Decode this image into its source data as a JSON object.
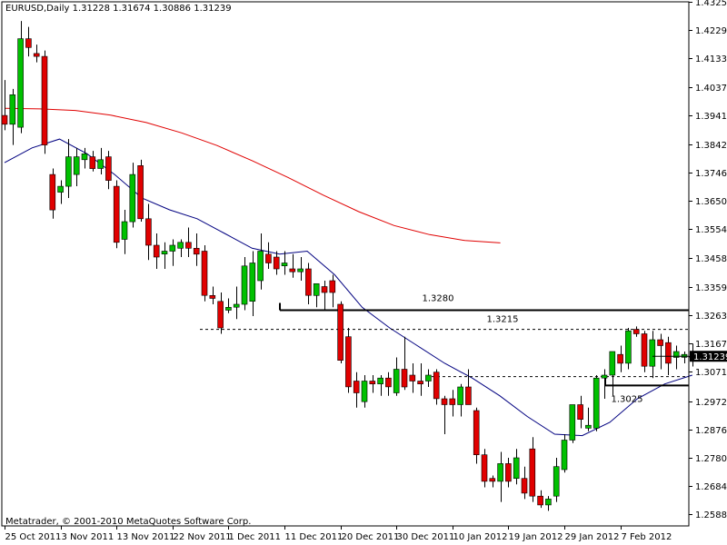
{
  "header": {
    "title": "EURUSD,Daily  1.31228 1.31674 1.30886 1.31239"
  },
  "footer": {
    "copyright": "Metatrader, © 2001-2010 MetaQuotes Software Corp."
  },
  "colors": {
    "bull": "#00c000",
    "bear": "#e00000",
    "wick": "#000000",
    "ma_slow": "#e00000",
    "ma_fast": "#000080",
    "level": "#000000"
  },
  "chart_data": {
    "type": "candlestick",
    "symbol": "EURUSD",
    "timeframe": "Daily",
    "ylim": [
      1.2549,
      1.4325
    ],
    "y_ticks": [
      "1.43250",
      "1.42290",
      "1.41330",
      "1.40370",
      "1.39410",
      "1.38420",
      "1.37460",
      "1.36500",
      "1.35540",
      "1.34580",
      "1.33590",
      "1.32630",
      "1.31670",
      "1.30710",
      "1.29720",
      "1.28760",
      "1.27800",
      "1.26840",
      "1.25880"
    ],
    "x_ticks": [
      {
        "label": "25 Oct 2011",
        "index": 0
      },
      {
        "label": "3 Nov 2011",
        "index": 7
      },
      {
        "label": "13 Nov 2011",
        "index": 14
      },
      {
        "label": "22 Nov 2011",
        "index": 21
      },
      {
        "label": "1 Dec 2011",
        "index": 28
      },
      {
        "label": "11 Dec 2011",
        "index": 35
      },
      {
        "label": "20 Dec 2011",
        "index": 42
      },
      {
        "label": "30 Dec 2011",
        "index": 49
      },
      {
        "label": "10 Jan 2012",
        "index": 56
      },
      {
        "label": "19 Jan 2012",
        "index": 63
      },
      {
        "label": "29 Jan 2012",
        "index": 70
      },
      {
        "label": "7 Feb 2012",
        "index": 77
      }
    ],
    "candles": [
      [
        1.394,
        1.406,
        1.389,
        1.391
      ],
      [
        1.391,
        1.403,
        1.384,
        1.401
      ],
      [
        1.39,
        1.426,
        1.388,
        1.42
      ],
      [
        1.42,
        1.424,
        1.414,
        1.417
      ],
      [
        1.415,
        1.418,
        1.412,
        1.414
      ],
      [
        1.414,
        1.416,
        1.381,
        1.384
      ],
      [
        1.374,
        1.376,
        1.359,
        1.362
      ],
      [
        1.368,
        1.372,
        1.364,
        1.37
      ],
      [
        1.37,
        1.386,
        1.366,
        1.38
      ],
      [
        1.374,
        1.383,
        1.37,
        1.38
      ],
      [
        1.379,
        1.383,
        1.376,
        1.381
      ],
      [
        1.38,
        1.382,
        1.375,
        1.376
      ],
      [
        1.376,
        1.383,
        1.374,
        1.379
      ],
      [
        1.38,
        1.382,
        1.369,
        1.372
      ],
      [
        1.37,
        1.372,
        1.349,
        1.351
      ],
      [
        1.352,
        1.362,
        1.347,
        1.358
      ],
      [
        1.358,
        1.378,
        1.356,
        1.374
      ],
      [
        1.377,
        1.379,
        1.358,
        1.359
      ],
      [
        1.359,
        1.364,
        1.345,
        1.35
      ],
      [
        1.35,
        1.354,
        1.342,
        1.346
      ],
      [
        1.347,
        1.351,
        1.342,
        1.348
      ],
      [
        1.348,
        1.352,
        1.343,
        1.35
      ],
      [
        1.349,
        1.352,
        1.346,
        1.351
      ],
      [
        1.351,
        1.356,
        1.346,
        1.349
      ],
      [
        1.349,
        1.354,
        1.343,
        1.347
      ],
      [
        1.348,
        1.35,
        1.331,
        1.333
      ],
      [
        1.333,
        1.336,
        1.33,
        1.332
      ],
      [
        1.331,
        1.334,
        1.32,
        1.322
      ],
      [
        1.328,
        1.332,
        1.327,
        1.329
      ],
      [
        1.329,
        1.336,
        1.325,
        1.33
      ],
      [
        1.33,
        1.346,
        1.328,
        1.343
      ],
      [
        1.331,
        1.348,
        1.326,
        1.344
      ],
      [
        1.338,
        1.354,
        1.335,
        1.348
      ],
      [
        1.347,
        1.351,
        1.342,
        1.344
      ],
      [
        1.346,
        1.348,
        1.34,
        1.342
      ],
      [
        1.343,
        1.348,
        1.34,
        1.344
      ],
      [
        1.342,
        1.347,
        1.339,
        1.341
      ],
      [
        1.341,
        1.346,
        1.338,
        1.342
      ],
      [
        1.342,
        1.344,
        1.33,
        1.333
      ],
      [
        1.333,
        1.337,
        1.329,
        1.337
      ],
      [
        1.336,
        1.338,
        1.328,
        1.334
      ],
      [
        1.338,
        1.34,
        1.329,
        1.334
      ],
      [
        1.33,
        1.331,
        1.31,
        1.311
      ],
      [
        1.319,
        1.322,
        1.3,
        1.302
      ],
      [
        1.304,
        1.307,
        1.295,
        1.3
      ],
      [
        1.297,
        1.306,
        1.295,
        1.304
      ],
      [
        1.304,
        1.306,
        1.3,
        1.303
      ],
      [
        1.303,
        1.306,
        1.299,
        1.305
      ],
      [
        1.305,
        1.307,
        1.299,
        1.302
      ],
      [
        1.3,
        1.312,
        1.299,
        1.308
      ],
      [
        1.308,
        1.319,
        1.301,
        1.302
      ],
      [
        1.306,
        1.31,
        1.3,
        1.304
      ],
      [
        1.304,
        1.31,
        1.299,
        1.303
      ],
      [
        1.304,
        1.308,
        1.302,
        1.306
      ],
      [
        1.307,
        1.308,
        1.296,
        1.298
      ],
      [
        1.298,
        1.299,
        1.286,
        1.296
      ],
      [
        1.298,
        1.301,
        1.292,
        1.296
      ],
      [
        1.296,
        1.303,
        1.292,
        1.302
      ],
      [
        1.302,
        1.308,
        1.296,
        1.296
      ],
      [
        1.294,
        1.295,
        1.276,
        1.279
      ],
      [
        1.279,
        1.281,
        1.268,
        1.27
      ],
      [
        1.271,
        1.272,
        1.268,
        1.27
      ],
      [
        1.27,
        1.28,
        1.263,
        1.276
      ],
      [
        1.276,
        1.278,
        1.268,
        1.27
      ],
      [
        1.271,
        1.281,
        1.269,
        1.278
      ],
      [
        1.271,
        1.275,
        1.264,
        1.266
      ],
      [
        1.281,
        1.285,
        1.263,
        1.265
      ],
      [
        1.265,
        1.267,
        1.261,
        1.262
      ],
      [
        1.262,
        1.265,
        1.26,
        1.264
      ],
      [
        1.265,
        1.278,
        1.263,
        1.275
      ],
      [
        1.274,
        1.286,
        1.273,
        1.284
      ],
      [
        1.284,
        1.296,
        1.283,
        1.296
      ],
      [
        1.296,
        1.299,
        1.288,
        1.291
      ],
      [
        1.288,
        1.295,
        1.287,
        1.289
      ],
      [
        1.288,
        1.306,
        1.287,
        1.305
      ],
      [
        1.305,
        1.308,
        1.298,
        1.306
      ],
      [
        1.306,
        1.314,
        1.299,
        1.314
      ],
      [
        1.313,
        1.316,
        1.307,
        1.31
      ],
      [
        1.31,
        1.322,
        1.308,
        1.321
      ],
      [
        1.3215,
        1.3225,
        1.319,
        1.32
      ],
      [
        1.32,
        1.321,
        1.307,
        1.309
      ],
      [
        1.309,
        1.321,
        1.305,
        1.318
      ],
      [
        1.318,
        1.32,
        1.308,
        1.316
      ],
      [
        1.317,
        1.319,
        1.306,
        1.31
      ],
      [
        1.312,
        1.316,
        1.308,
        1.314
      ],
      [
        1.312,
        1.314,
        1.31,
        1.313
      ],
      [
        1.3123,
        1.3167,
        1.3089,
        1.3124
      ]
    ],
    "ma_slow": {
      "values": [
        1.3964,
        1.3962,
        1.3957,
        1.3941,
        1.3916,
        1.3881,
        1.3838,
        1.3786,
        1.373,
        1.367,
        1.3614,
        1.3567,
        1.3536,
        1.3516,
        1.3508
      ]
    },
    "ma_fast": {
      "values": [
        1.378,
        1.383,
        1.386,
        1.381,
        1.374,
        1.366,
        1.362,
        1.359,
        1.354,
        1.349,
        1.347,
        1.348,
        1.34,
        1.329,
        1.322,
        1.316,
        1.31,
        1.305,
        1.299,
        1.292,
        1.286,
        1.2855,
        1.29,
        1.298,
        1.303,
        1.306
      ]
    },
    "levels": [
      {
        "value": 1.328,
        "label": "1.3280",
        "style": "solid"
      },
      {
        "value": 1.3215,
        "label": "1.3215",
        "style": "dashed"
      },
      {
        "value": 1.3055,
        "label": "",
        "style": "dashed"
      },
      {
        "value": 1.3025,
        "label": "1.3025",
        "style": "solid"
      }
    ],
    "current_price": "1.31239",
    "current_value": 1.31239
  }
}
